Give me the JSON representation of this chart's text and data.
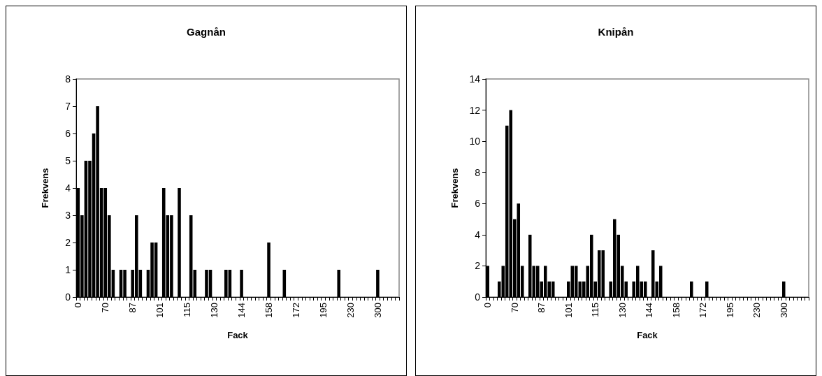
{
  "chart_data": [
    {
      "type": "bar",
      "title": "Gagnån",
      "xlabel": "Fack",
      "ylabel": "Frekvens",
      "color": "#000000",
      "grid": false,
      "ylim": [
        0,
        8
      ],
      "yticks": [
        0,
        1,
        2,
        3,
        4,
        5,
        6,
        7,
        8
      ],
      "categories": [
        "0",
        null,
        null,
        null,
        null,
        null,
        null,
        "70",
        null,
        null,
        null,
        null,
        null,
        null,
        "87",
        null,
        null,
        null,
        null,
        null,
        null,
        "101",
        null,
        null,
        null,
        null,
        null,
        null,
        "115",
        null,
        null,
        null,
        null,
        null,
        null,
        "130",
        null,
        null,
        null,
        null,
        null,
        null,
        "144",
        null,
        null,
        null,
        null,
        null,
        null,
        "158",
        null,
        null,
        null,
        null,
        null,
        null,
        "172",
        null,
        null,
        null,
        null,
        null,
        null,
        "195",
        null,
        null,
        null,
        null,
        null,
        null,
        "230",
        null,
        null,
        null,
        null,
        null,
        null,
        "300",
        null,
        null,
        null,
        null,
        null
      ],
      "values": [
        4,
        3,
        5,
        5,
        6,
        7,
        4,
        4,
        3,
        1,
        0,
        1,
        1,
        0,
        1,
        3,
        1,
        0,
        1,
        2,
        2,
        0,
        4,
        3,
        3,
        0,
        4,
        0,
        0,
        3,
        1,
        0,
        0,
        1,
        1,
        0,
        0,
        0,
        1,
        1,
        0,
        0,
        1,
        0,
        0,
        0,
        0,
        0,
        0,
        2,
        0,
        0,
        0,
        1,
        0,
        0,
        0,
        0,
        0,
        0,
        0,
        0,
        0,
        0,
        0,
        0,
        0,
        1,
        0,
        0,
        0,
        0,
        0,
        0,
        0,
        0,
        0,
        1,
        0,
        0,
        0,
        0,
        0
      ]
    },
    {
      "type": "bar",
      "title": "Knipån",
      "xlabel": "Fack",
      "ylabel": "Frekvens",
      "color": "#000000",
      "grid": false,
      "ylim": [
        0,
        14
      ],
      "yticks": [
        0,
        2,
        4,
        6,
        8,
        10,
        12,
        14
      ],
      "categories": [
        "0",
        null,
        null,
        null,
        null,
        null,
        null,
        "70",
        null,
        null,
        null,
        null,
        null,
        null,
        "87",
        null,
        null,
        null,
        null,
        null,
        null,
        "101",
        null,
        null,
        null,
        null,
        null,
        null,
        "115",
        null,
        null,
        null,
        null,
        null,
        null,
        "130",
        null,
        null,
        null,
        null,
        null,
        null,
        "144",
        null,
        null,
        null,
        null,
        null,
        null,
        "158",
        null,
        null,
        null,
        null,
        null,
        null,
        "172",
        null,
        null,
        null,
        null,
        null,
        null,
        "195",
        null,
        null,
        null,
        null,
        null,
        null,
        "230",
        null,
        null,
        null,
        null,
        null,
        null,
        "300",
        null,
        null,
        null,
        null,
        null,
        null
      ],
      "values": [
        2,
        0,
        0,
        1,
        2,
        11,
        12,
        5,
        6,
        2,
        0,
        4,
        2,
        2,
        1,
        2,
        1,
        1,
        0,
        0,
        0,
        1,
        2,
        2,
        1,
        1,
        2,
        4,
        1,
        3,
        3,
        0,
        1,
        5,
        4,
        2,
        1,
        0,
        1,
        2,
        1,
        1,
        0,
        3,
        1,
        2,
        0,
        0,
        0,
        0,
        0,
        0,
        0,
        1,
        0,
        0,
        0,
        1,
        0,
        0,
        0,
        0,
        0,
        0,
        0,
        0,
        0,
        0,
        0,
        0,
        0,
        0,
        0,
        0,
        0,
        0,
        0,
        1,
        0,
        0,
        0,
        0,
        0,
        0
      ]
    }
  ]
}
